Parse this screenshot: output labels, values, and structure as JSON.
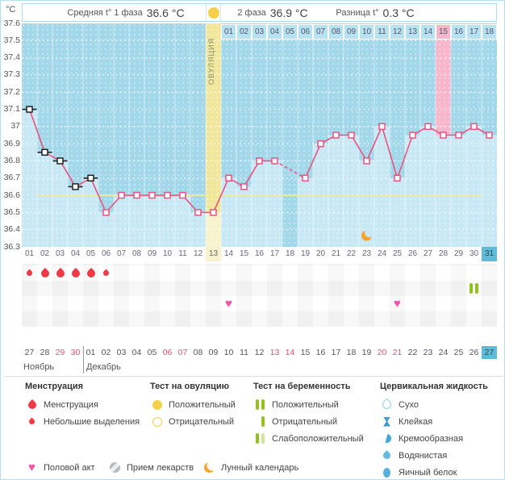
{
  "header": {
    "unit": "°C",
    "phase1_label": "Средняя t° 1 фаза",
    "phase1_value": "36.6 °C",
    "phase2_label": "2 фаза",
    "phase2_value": "36.9 °C",
    "diff_label": "Разница t°",
    "diff_value": "0.3 °C"
  },
  "chart_data": {
    "type": "line",
    "title": "Basal body temperature cycle chart",
    "ylabel": "°C",
    "ylim": [
      36.3,
      37.6
    ],
    "yticks": [
      "37.6",
      "37.5",
      "37.4",
      "37.3",
      "37.2",
      "37.1",
      "37",
      "36.9",
      "36.8",
      "36.7",
      "36.6",
      "36.5",
      "36.4",
      "36.3"
    ],
    "x_days": [
      "01",
      "02",
      "03",
      "04",
      "05",
      "06",
      "07",
      "08",
      "09",
      "10",
      "11",
      "12",
      "13",
      "14",
      "15",
      "16",
      "17",
      "18",
      "19",
      "20",
      "21",
      "22",
      "23",
      "24",
      "25",
      "26",
      "27",
      "28",
      "29",
      "30",
      "31"
    ],
    "temps": [
      37.1,
      36.85,
      36.8,
      36.65,
      36.7,
      36.5,
      36.6,
      36.6,
      36.6,
      36.6,
      36.6,
      36.5,
      36.5,
      36.7,
      36.65,
      36.8,
      36.8,
      null,
      36.7,
      36.9,
      36.95,
      36.95,
      36.8,
      37.0,
      36.7,
      36.95,
      37.0,
      36.95,
      36.95,
      37.0,
      36.95
    ],
    "excluded_days": [
      1,
      2,
      3,
      4,
      5
    ],
    "missed_days": [
      18
    ],
    "coverline": 36.6,
    "coverline_day_span": [
      2,
      30
    ],
    "ovulation_day": 13,
    "ovulation_label": "ОВУЛЯЦИЯ",
    "highlight_day": 28,
    "today_day": 31,
    "moon_day": 23,
    "phase2_days": [
      "01",
      "02",
      "03",
      "04",
      "05",
      "06",
      "07",
      "08",
      "09",
      "10",
      "11",
      "12",
      "13",
      "14",
      "15",
      "16",
      "17",
      "18"
    ],
    "phase2_highlight": "15",
    "grid": "dotted horizontal each 0.1°C, legend none"
  },
  "events": {
    "menstruation": [
      {
        "day": 1,
        "size": "small"
      },
      {
        "day": 2,
        "size": "big"
      },
      {
        "day": 3,
        "size": "big"
      },
      {
        "day": 4,
        "size": "big"
      },
      {
        "day": 5,
        "size": "big"
      },
      {
        "day": 6,
        "size": "small"
      }
    ],
    "pregnancy_test_positive_days": [
      30
    ],
    "intercourse_days": [
      14,
      25
    ]
  },
  "calendar": {
    "days": [
      "27",
      "28",
      "29",
      "30",
      "01",
      "02",
      "03",
      "04",
      "05",
      "06",
      "07",
      "08",
      "09",
      "10",
      "11",
      "12",
      "13",
      "14",
      "15",
      "16",
      "17",
      "18",
      "19",
      "20",
      "21",
      "22",
      "23",
      "24",
      "25",
      "26",
      "27"
    ],
    "red_indices": [
      2,
      3,
      9,
      10,
      16,
      17,
      23,
      24
    ],
    "today_index": 30,
    "month1": "Ноябрь",
    "month2": "Декабрь",
    "month_divider_after_cells": 4
  },
  "legend": {
    "groups": [
      {
        "title": "Менструация",
        "items": [
          {
            "icon": "drop-big",
            "label": "Менструация"
          },
          {
            "icon": "drop-small",
            "label": "Небольшие выделения"
          }
        ]
      },
      {
        "title": "Тест на овуляцию",
        "items": [
          {
            "icon": "circle-filled",
            "label": "Положительный"
          },
          {
            "icon": "circle-outline",
            "label": "Отрицательный"
          }
        ]
      },
      {
        "title": "Тест на беременность",
        "items": [
          {
            "icon": "bars-two",
            "label": "Положительный"
          },
          {
            "icon": "bar-one",
            "label": "Отрицательный"
          },
          {
            "icon": "bars-weak",
            "label": "Слабоположительный"
          }
        ]
      },
      {
        "title": "Цервикальная жидкость",
        "items": [
          {
            "icon": "drop-outline-blue",
            "label": "Сухо"
          },
          {
            "icon": "sticky",
            "label": "Клейкая"
          },
          {
            "icon": "drop-half",
            "label": "Кремообразная"
          },
          {
            "icon": "drop-filled-blue",
            "label": "Водянистая"
          },
          {
            "icon": "egg",
            "label": "Яичный белок"
          }
        ]
      }
    ],
    "extra": [
      {
        "icon": "heart",
        "label": "Половой акт"
      },
      {
        "icon": "pill",
        "label": "Прием лекарств"
      },
      {
        "icon": "moon",
        "label": "Лунный календарь"
      }
    ]
  },
  "colors": {
    "line": "#e75480",
    "chart_bg": "#a3d7ea",
    "column_light": "#c9e8f6",
    "top_cell_blue": "#b7e2f2",
    "ovulation_yellow": "#f0e79d",
    "ovulation_yellow_light": "#f8f3cd",
    "highlight_pink": "#f6b6cb",
    "coverline_yellow": "#eeeb97",
    "today_cyan": "#5fbcd9",
    "menstruation_red": "#ee3b47",
    "heart_pink": "#f155ab",
    "test_green": "#94c11e",
    "moon_orange": "#f6a42d",
    "cervical_blue": "#47a7d8",
    "weekend_red": "#ea4e7b",
    "excluded_marker": "#222222"
  }
}
